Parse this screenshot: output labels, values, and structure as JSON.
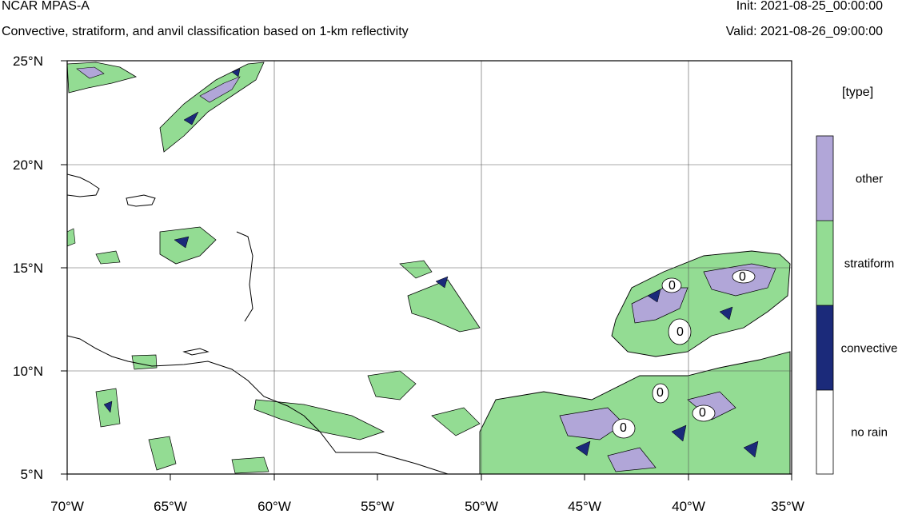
{
  "header": {
    "title": "NCAR MPAS-A",
    "subtitle": "Convective, stratiform, and anvil classification based on 1-km reflectivity",
    "init": "Init: 2021-08-25_00:00:00",
    "valid": "Valid: 2021-08-26_09:00:00"
  },
  "map": {
    "lon_range": [
      -70,
      -35
    ],
    "lat_range": [
      5,
      25
    ],
    "gridlines": true,
    "lat_labels": [
      "25°N",
      "20°N",
      "15°N",
      "10°N",
      "5°N"
    ],
    "lon_labels": [
      "70°W",
      "65°W",
      "60°W",
      "55°W",
      "50°W",
      "45°W",
      "40°W",
      "35°W"
    ]
  },
  "colorbar": {
    "units": "[type]",
    "categories": [
      {
        "label": "other",
        "color": "#b1a6d8"
      },
      {
        "label": "stratiform",
        "color": "#93dc93"
      },
      {
        "label": "convective",
        "color": "#1b2a7a"
      },
      {
        "label": "no rain",
        "color": "#ffffff"
      }
    ]
  },
  "contour_labels": [
    "0",
    "0",
    "0",
    "0",
    "0",
    "0"
  ]
}
